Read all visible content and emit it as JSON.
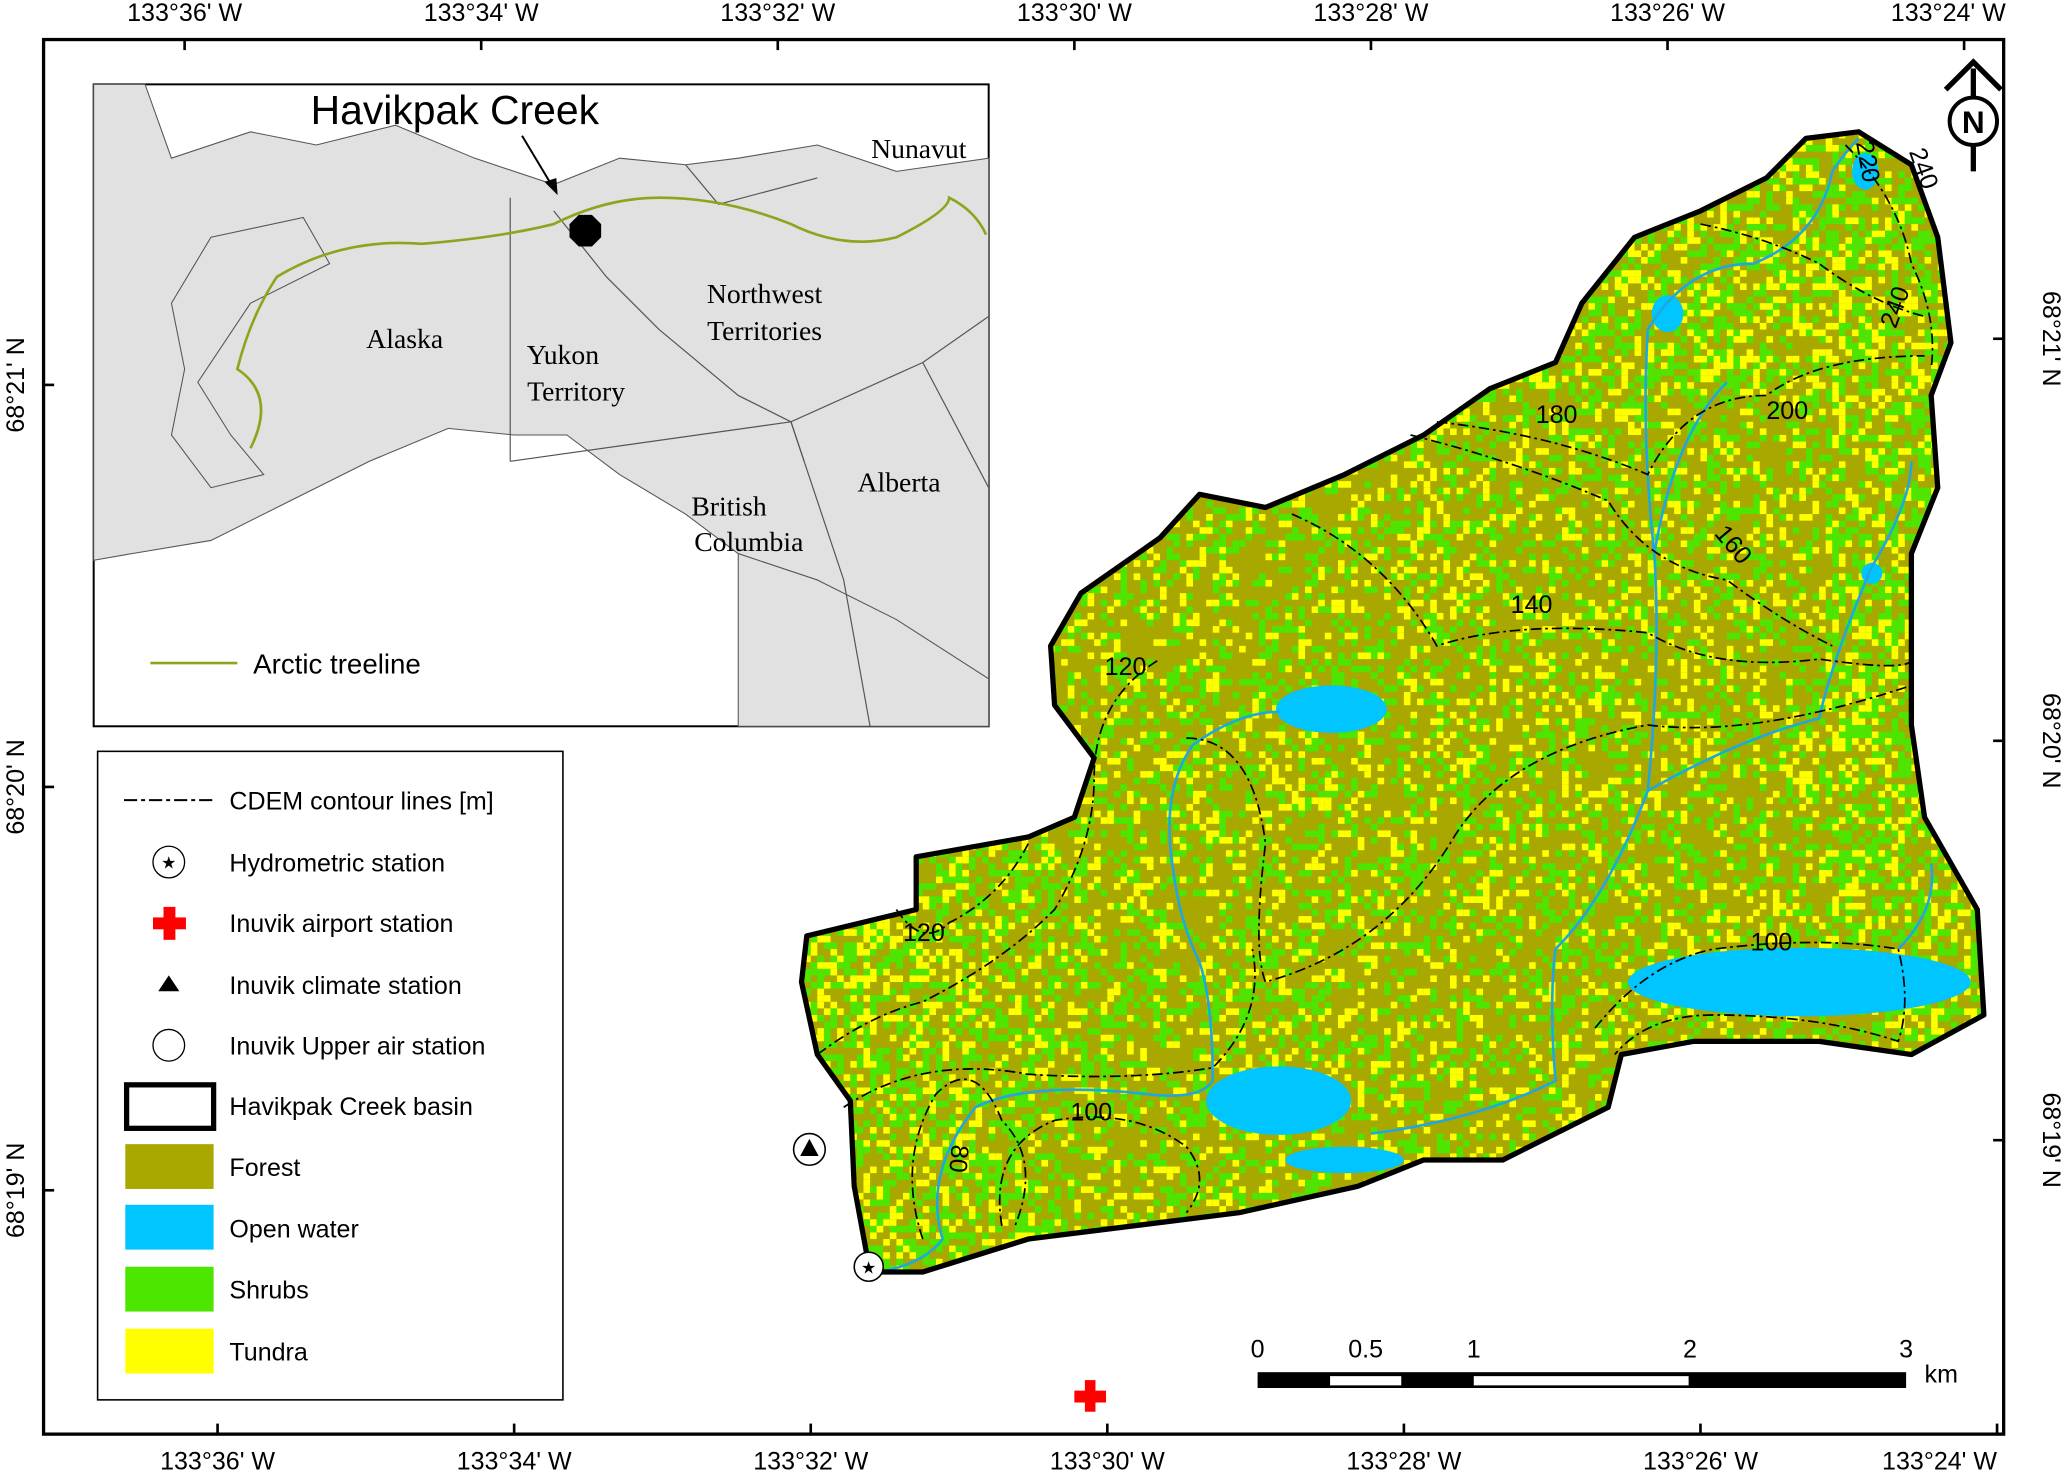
{
  "axes": {
    "top": [
      "133°36' W",
      "133°34' W",
      "133°32' W",
      "133°30' W",
      "133°28' W",
      "133°26' W",
      "133°24' W"
    ],
    "bottom": [
      "133°36' W",
      "133°34' W",
      "133°32' W",
      "133°30' W",
      "133°28' W",
      "133°26' W",
      "133°24' W"
    ],
    "left": [
      "68°21' N",
      "68°20' N",
      "68°19' N"
    ],
    "right": [
      "68°21' N",
      "68°20' N",
      "68°19' N"
    ]
  },
  "north_arrow": {
    "label": "N"
  },
  "inset": {
    "title": "Havikpak Creek",
    "regions": {
      "alaska": "Alaska",
      "yukon_1": "Yukon",
      "yukon_2": "Territory",
      "nwt_1": "Northwest",
      "nwt_2": "Territories",
      "nunavut": "Nunavut",
      "bc_1": "British",
      "bc_2": "Columbia",
      "alberta": "Alberta"
    },
    "treeline_label": "Arctic  treeline",
    "colors": {
      "land": "#e1e1e1",
      "treeline": "#8aa61e"
    }
  },
  "legend": {
    "items": [
      {
        "label": "CDEM  contour lines [m]",
        "symbol": "dash-dot-line"
      },
      {
        "label": "Hydrometric  station",
        "symbol": "star-in-circle"
      },
      {
        "label": "Inuvik  airport  station",
        "symbol": "red-cross"
      },
      {
        "label": "Inuvik  climate  station",
        "symbol": "triangle"
      },
      {
        "label": "Inuvik  Upper  air  station",
        "symbol": "circle"
      },
      {
        "label": "Havikpak Creek basin",
        "symbol": "outline-box"
      },
      {
        "label": "Forest",
        "symbol": "swatch",
        "color": "#a8a800"
      },
      {
        "label": "Open water",
        "symbol": "swatch",
        "color": "#00c5ff"
      },
      {
        "label": "Shrubs",
        "symbol": "swatch",
        "color": "#4ce600"
      },
      {
        "label": "Tundra",
        "symbol": "swatch",
        "color": "#ffff00"
      }
    ]
  },
  "contour_labels": [
    "120",
    "120",
    "100",
    "100",
    "80",
    "140",
    "160",
    "180",
    "200",
    "220",
    "240",
    "240"
  ],
  "scale_bar": {
    "ticks": [
      "0",
      "0.5",
      "1",
      "2",
      "3"
    ],
    "unit": "km"
  }
}
